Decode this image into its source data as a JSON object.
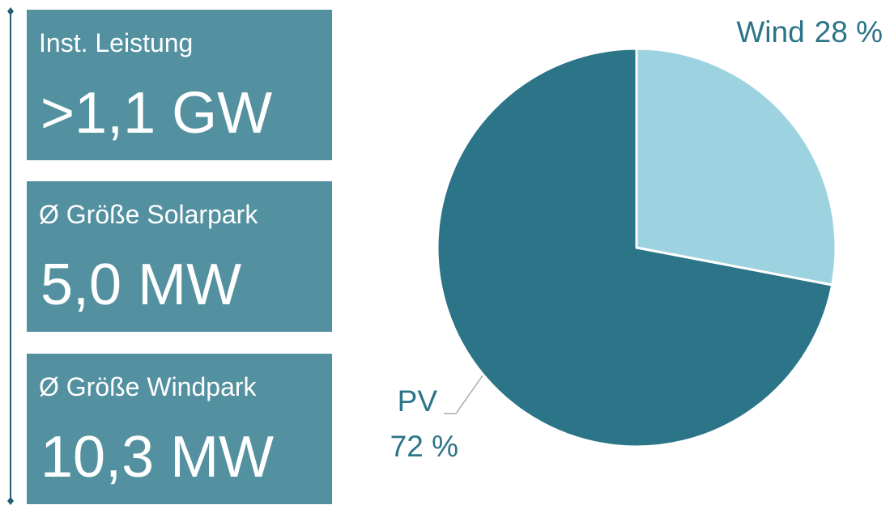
{
  "kpis": [
    {
      "label": "Inst. Leistung",
      "value": ">1,1 GW"
    },
    {
      "label": "Ø Größe Solarpark",
      "value": "5,0 MW"
    },
    {
      "label": "Ø Größe Windpark",
      "value": "10,3 MW"
    }
  ],
  "chart_data": {
    "type": "pie",
    "categories": [
      "Wind",
      "PV"
    ],
    "values": [
      28,
      72
    ],
    "value_labels": [
      "28 %",
      "72 %"
    ],
    "colors": [
      "#9dd3e0",
      "#2c7488"
    ]
  }
}
